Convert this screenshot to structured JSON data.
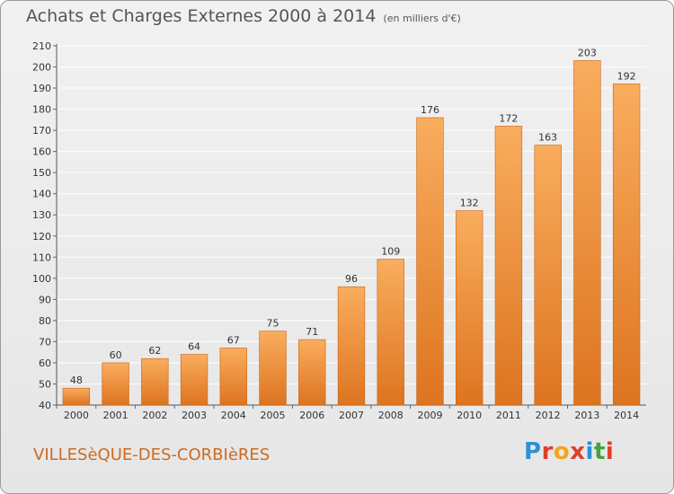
{
  "title": "Achats et Charges Externes 2000 à 2014",
  "subtitle": "(en milliers d'€)",
  "commune": "VILLESèQUE-DES-CORBIèRES",
  "logo": {
    "text": "Proxiti",
    "colors": [
      "#2f8fd6",
      "#e0402a",
      "#f2a51b",
      "#e0402a",
      "#2f8fd6",
      "#3da63a",
      "#e0402a"
    ]
  },
  "colors": {
    "bar_top": "#f9ad5e",
    "bar_bottom": "#dd7420",
    "bar_side": "#c86416",
    "grid": "#ffffff",
    "text": "#333333"
  },
  "chart_data": {
    "type": "bar",
    "title": "Achats et Charges Externes 2000 à 2014",
    "subtitle": "(en milliers d'€)",
    "categories": [
      "2000",
      "2001",
      "2002",
      "2003",
      "2004",
      "2005",
      "2006",
      "2007",
      "2008",
      "2009",
      "2010",
      "2011",
      "2012",
      "2013",
      "2014"
    ],
    "values": [
      48,
      60,
      62,
      64,
      67,
      75,
      71,
      96,
      109,
      176,
      132,
      172,
      163,
      203,
      192
    ],
    "xlabel": "",
    "ylabel": "",
    "ylim": [
      40,
      210
    ],
    "yticks": [
      40,
      50,
      60,
      70,
      80,
      90,
      100,
      110,
      120,
      130,
      140,
      150,
      160,
      170,
      180,
      190,
      200,
      210
    ],
    "grid": true,
    "data_labels": true
  }
}
